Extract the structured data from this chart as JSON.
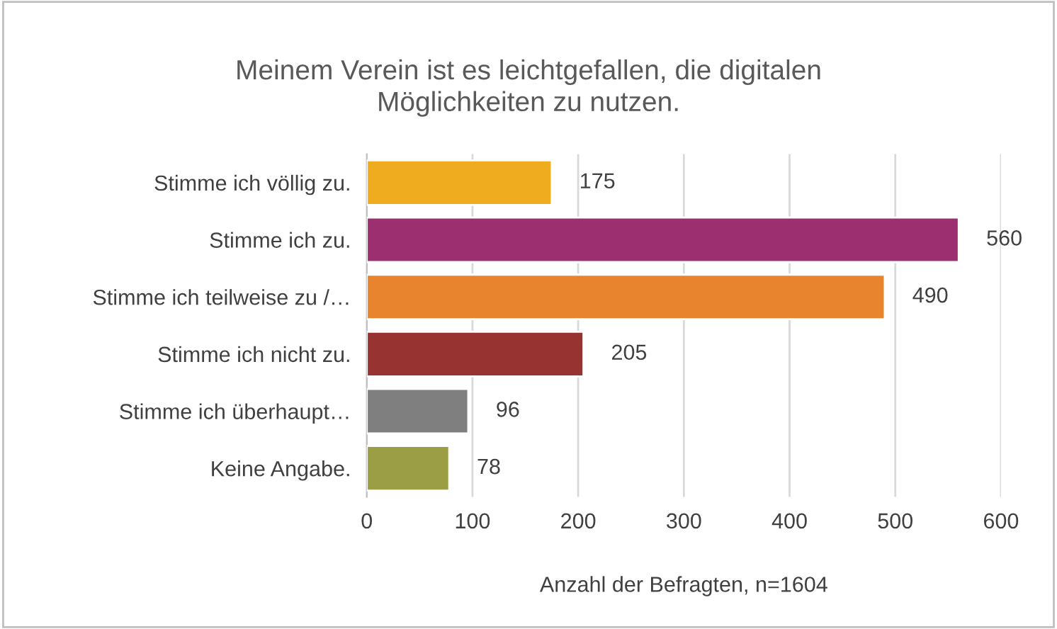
{
  "chart_data": {
    "type": "bar",
    "orientation": "horizontal",
    "title": "Meinem Verein ist es leichtgefallen, die digitalen\nMöglichkeiten zu nutzen.",
    "xlabel": "Anzahl der Befragten, n=1604",
    "categories": [
      "Stimme ich völlig zu.",
      "Stimme ich zu.",
      "Stimme ich teilweise zu /…",
      "Stimme ich nicht zu.",
      "Stimme ich überhaupt…",
      "Keine Angabe."
    ],
    "values": [
      175,
      560,
      490,
      205,
      96,
      78
    ],
    "colors": [
      "#f0ac1f",
      "#9b2f6f",
      "#e8832e",
      "#973432",
      "#7f7f7f",
      "#9b9e45"
    ],
    "xlim": [
      0,
      600
    ],
    "xticks": [
      0,
      100,
      200,
      300,
      400,
      500,
      600
    ],
    "grid": "x",
    "data_labels": true,
    "legend": false
  }
}
